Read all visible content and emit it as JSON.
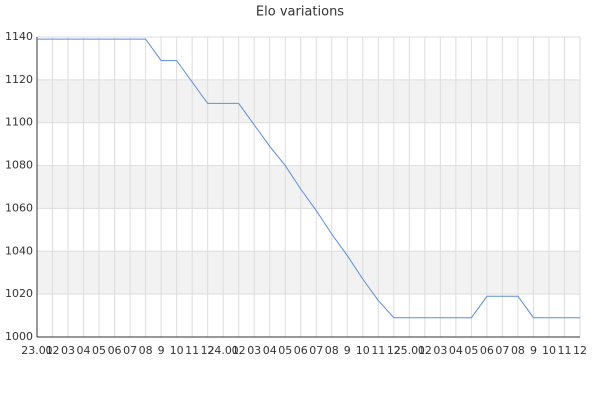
{
  "chart_data": {
    "type": "line",
    "title": "Elo variations",
    "categories": [
      "23.01",
      "02",
      "03",
      "04",
      "05",
      "06",
      "07",
      "08",
      "9",
      "10",
      "11",
      "12",
      "24.01",
      "02",
      "03",
      "04",
      "05",
      "06",
      "07",
      "08",
      "9",
      "10",
      "11",
      "12",
      "25.01",
      "02",
      "03",
      "04",
      "05",
      "06",
      "07",
      "08",
      "9",
      "10",
      "11",
      "12"
    ],
    "series": [
      {
        "name": "Elo",
        "color": "#5b8fd8",
        "values": [
          1139,
          1139,
          1139,
          1139,
          1139,
          1139,
          1139,
          1139,
          1129,
          1129,
          1119,
          1109,
          1109,
          1109,
          1099,
          1089,
          1080,
          1069,
          1059,
          1048,
          1038,
          1027,
          1017,
          1009,
          1009,
          1009,
          1009,
          1009,
          1009,
          1019,
          1019,
          1019,
          1009,
          1009,
          1009,
          1009
        ]
      }
    ],
    "ylim": [
      1000,
      1140
    ],
    "yticks": [
      1000,
      1020,
      1040,
      1060,
      1080,
      1100,
      1120,
      1140
    ],
    "grid": true,
    "band_color": "#f2f2f2",
    "grid_color": "#dddddd"
  }
}
